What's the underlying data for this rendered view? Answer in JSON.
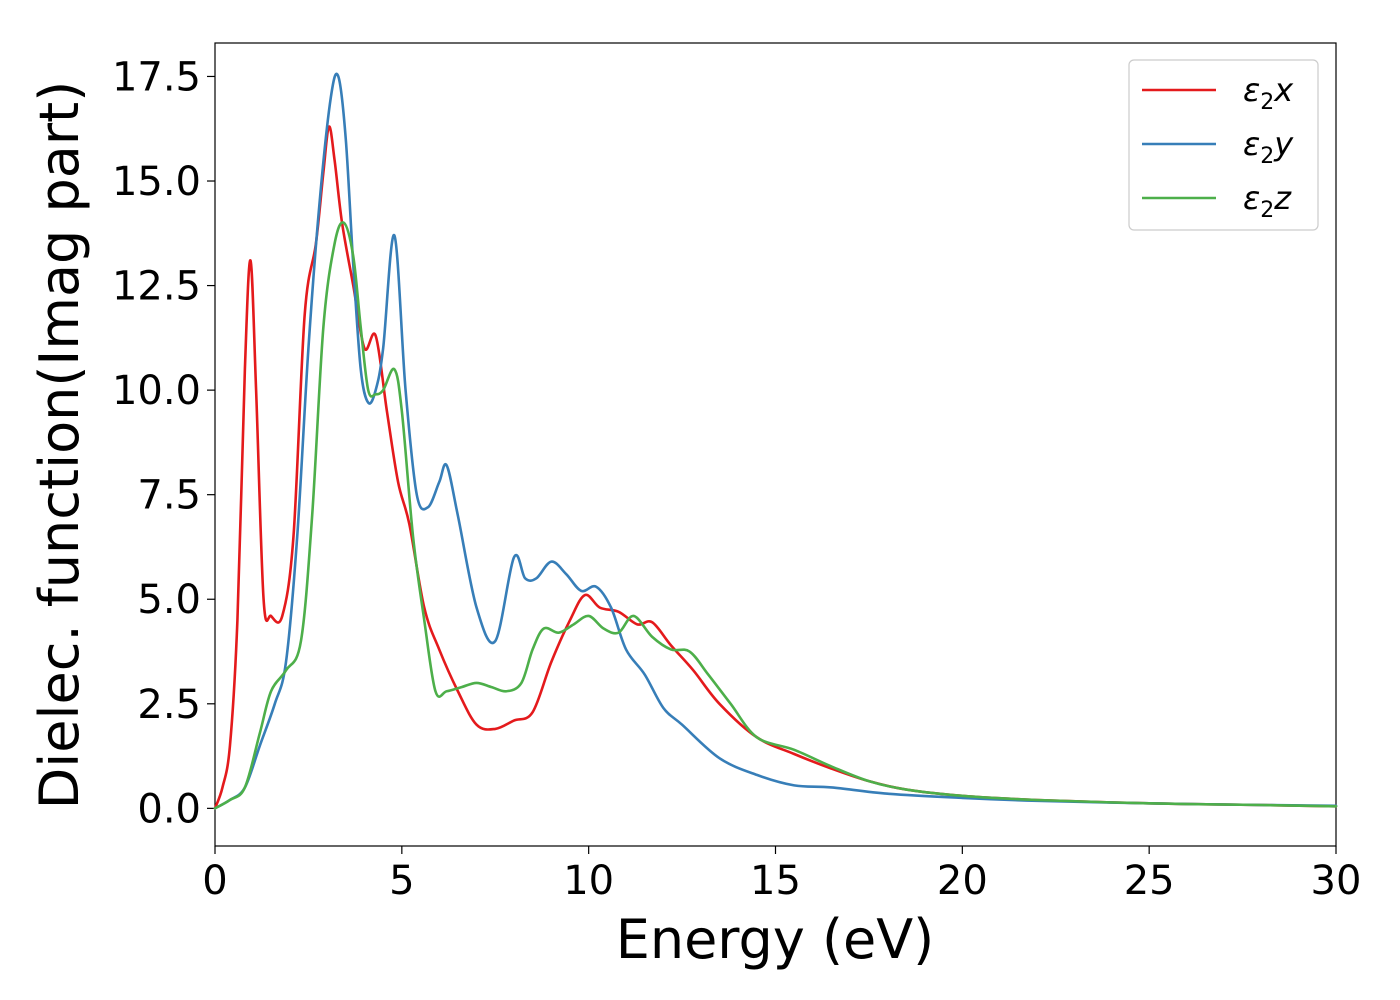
{
  "chart_data": {
    "type": "line",
    "title": "",
    "xlabel": "Energy (eV)",
    "ylabel": "Dielec. function(Imag part)",
    "xlim": [
      0,
      30
    ],
    "ylim": [
      -0.9,
      18.3
    ],
    "xticks": [
      0,
      5,
      10,
      15,
      20,
      25,
      30
    ],
    "xtick_labels": [
      "0",
      "5",
      "10",
      "15",
      "20",
      "25",
      "30"
    ],
    "yticks": [
      0.0,
      2.5,
      5.0,
      7.5,
      10.0,
      12.5,
      15.0,
      17.5
    ],
    "ytick_labels": [
      "0.0",
      "2.5",
      "5.0",
      "7.5",
      "10.0",
      "12.5",
      "15.0",
      "17.5"
    ],
    "grid": false,
    "legend_position": "top-right",
    "series": [
      {
        "name": "ε₂x",
        "label_base": "ε",
        "label_sub": "2",
        "label_suffix": "x",
        "color": "#e41a1c",
        "x": [
          0,
          0.2,
          0.4,
          0.6,
          0.8,
          0.95,
          1.1,
          1.3,
          1.5,
          1.8,
          2.1,
          2.4,
          2.7,
          2.9,
          3.05,
          3.2,
          3.4,
          3.7,
          4.0,
          4.3,
          4.6,
          4.9,
          5.2,
          5.6,
          6.0,
          6.5,
          7.0,
          7.5,
          8.0,
          8.5,
          9.0,
          9.5,
          9.9,
          10.3,
          10.8,
          11.3,
          11.7,
          12.2,
          12.8,
          13.5,
          14.5,
          15.5,
          16.5,
          17.5,
          18.5,
          20,
          22,
          25,
          28,
          30
        ],
        "y": [
          0,
          0.5,
          1.5,
          4.5,
          10.5,
          13.1,
          10.0,
          5.0,
          4.6,
          4.6,
          6.5,
          11.8,
          13.5,
          15.2,
          16.3,
          15.5,
          14.0,
          12.5,
          11.0,
          11.3,
          9.5,
          7.8,
          6.8,
          4.8,
          3.8,
          2.8,
          2.0,
          1.9,
          2.1,
          2.3,
          3.5,
          4.5,
          5.1,
          4.8,
          4.7,
          4.4,
          4.45,
          3.9,
          3.3,
          2.5,
          1.7,
          1.3,
          0.95,
          0.65,
          0.45,
          0.3,
          0.2,
          0.12,
          0.08,
          0.05
        ]
      },
      {
        "name": "ε₂y",
        "label_base": "ε",
        "label_sub": "2",
        "label_suffix": "y",
        "color": "#377eb8",
        "x": [
          0,
          0.4,
          0.8,
          1.2,
          1.6,
          1.9,
          2.2,
          2.5,
          2.8,
          3.1,
          3.3,
          3.5,
          3.7,
          3.9,
          4.1,
          4.3,
          4.5,
          4.8,
          5.1,
          5.4,
          5.7,
          6.0,
          6.2,
          6.5,
          7.0,
          7.5,
          8.0,
          8.3,
          8.6,
          9.0,
          9.4,
          9.8,
          10.2,
          10.6,
          11.0,
          11.5,
          12.0,
          12.5,
          13.5,
          14.5,
          15.5,
          16.5,
          18,
          20,
          22,
          25,
          28,
          30
        ],
        "y": [
          0,
          0.2,
          0.5,
          1.5,
          2.5,
          3.5,
          6.5,
          11.0,
          14.5,
          17.0,
          17.5,
          16.0,
          13.0,
          10.5,
          9.7,
          10.0,
          11.0,
          13.7,
          10.0,
          7.5,
          7.2,
          7.8,
          8.2,
          7.0,
          4.8,
          4.0,
          6.0,
          5.5,
          5.5,
          5.9,
          5.6,
          5.2,
          5.3,
          4.8,
          3.8,
          3.2,
          2.4,
          2.0,
          1.2,
          0.8,
          0.55,
          0.5,
          0.35,
          0.25,
          0.18,
          0.12,
          0.08,
          0.06
        ]
      },
      {
        "name": "ε₂z",
        "label_base": "ε",
        "label_sub": "2",
        "label_suffix": "z",
        "color": "#4daf4a",
        "x": [
          0,
          0.4,
          0.8,
          1.2,
          1.5,
          1.9,
          2.3,
          2.6,
          2.9,
          3.2,
          3.45,
          3.7,
          3.9,
          4.1,
          4.3,
          4.5,
          4.8,
          5.0,
          5.3,
          5.6,
          5.9,
          6.2,
          6.6,
          7.0,
          7.4,
          7.8,
          8.2,
          8.5,
          8.8,
          9.2,
          9.6,
          10.0,
          10.4,
          10.8,
          11.2,
          11.7,
          12.2,
          12.7,
          13.2,
          13.8,
          14.5,
          15.5,
          16.5,
          17.5,
          18.5,
          20,
          22,
          25,
          28,
          30
        ],
        "y": [
          0,
          0.2,
          0.5,
          1.8,
          2.8,
          3.3,
          4.0,
          7.0,
          11.5,
          13.5,
          14.0,
          13.2,
          11.5,
          10.0,
          9.9,
          10.0,
          10.5,
          9.5,
          6.5,
          4.5,
          2.8,
          2.8,
          2.9,
          3.0,
          2.9,
          2.8,
          3.0,
          3.8,
          4.3,
          4.2,
          4.4,
          4.6,
          4.3,
          4.2,
          4.6,
          4.1,
          3.8,
          3.75,
          3.2,
          2.5,
          1.7,
          1.4,
          1.0,
          0.65,
          0.45,
          0.3,
          0.2,
          0.12,
          0.08,
          0.05
        ]
      }
    ]
  }
}
